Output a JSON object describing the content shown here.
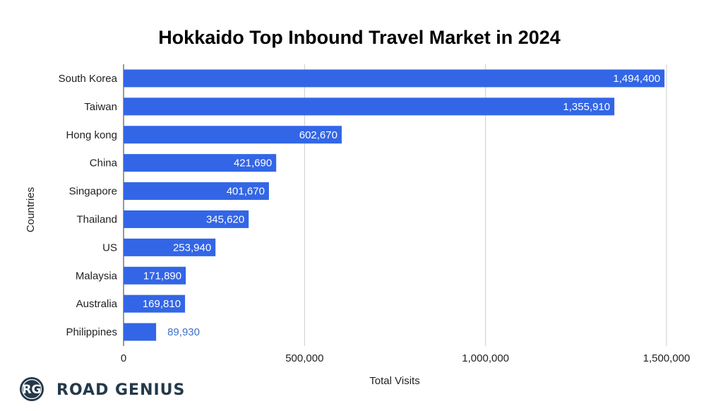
{
  "chart_data": {
    "type": "bar",
    "orientation": "horizontal",
    "title": "Hokkaido Top Inbound Travel Market in 2024",
    "xlabel": "Total Visits",
    "ylabel": "Countries",
    "xlim": [
      0,
      1500000
    ],
    "x_ticks": [
      0,
      500000,
      1000000,
      1500000
    ],
    "x_tick_labels": [
      "0",
      "500,000",
      "1,000,000",
      "1,500,000"
    ],
    "grid": "vertical",
    "categories": [
      "South Korea",
      "Taiwan",
      "Hong kong",
      "China",
      "Singapore",
      "Thailand",
      "US",
      "Malaysia",
      "Australia",
      "Philippines"
    ],
    "values": [
      1494400,
      1355910,
      602670,
      421690,
      401670,
      345620,
      253940,
      171890,
      169810,
      89930
    ],
    "value_labels": [
      "1,494,400",
      "1,355,910",
      "602,670",
      "421,690",
      "401,670",
      "345,620",
      "253,940",
      "171,890",
      "169,810",
      "89,930"
    ],
    "bar_color": "#3366e6",
    "inside_label_color": "#ffffff",
    "outside_label_color": "#3d6fcf",
    "grid_color": "#cccccc"
  },
  "brand": {
    "logo_initials": "RG",
    "name": "ROAD GENIUS",
    "color": "#24394a"
  }
}
